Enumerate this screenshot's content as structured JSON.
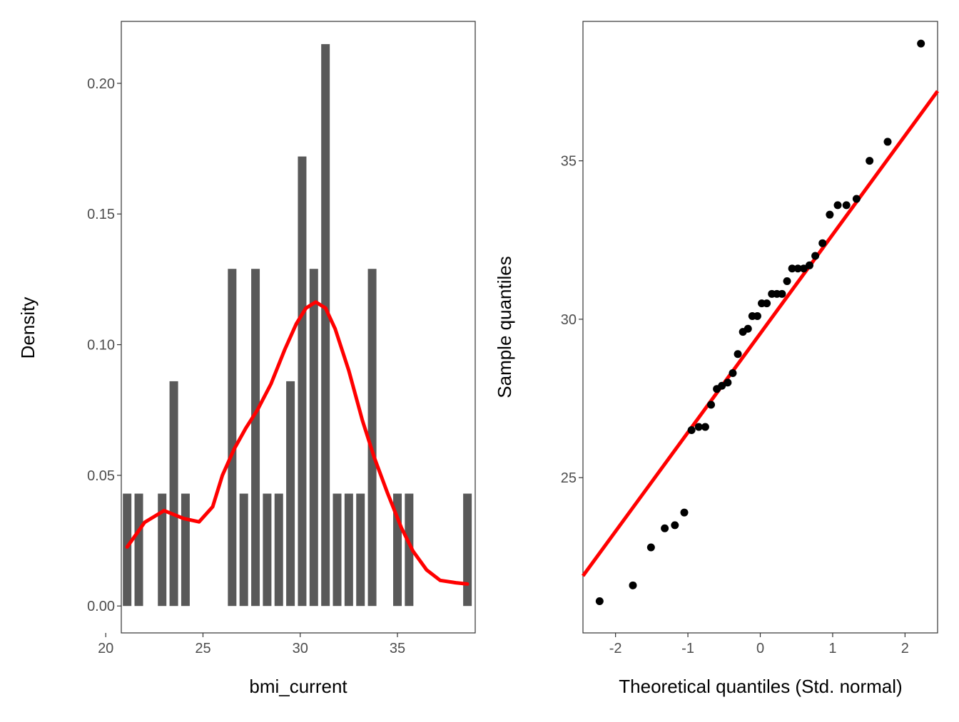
{
  "colors": {
    "bar": "#595959",
    "density_line": "#ff0000",
    "qq_line": "#ff0000",
    "points": "#000000",
    "panel_border": "#333333",
    "tick_text": "#4d4d4d"
  },
  "chart_data": [
    {
      "type": "bar",
      "subtype": "histogram_with_density",
      "title": "",
      "xlabel": "bmi_current",
      "ylabel": "Density",
      "xlim": [
        20.8,
        39.0
      ],
      "ylim": [
        -0.0103,
        0.2237
      ],
      "xticks": [
        20,
        25,
        30,
        35
      ],
      "xtick_labels": [
        "20",
        "25",
        "30",
        "35"
      ],
      "yticks": [
        0.0,
        0.05,
        0.1,
        0.15,
        0.2
      ],
      "ytick_labels": [
        "0.00",
        "0.05",
        "0.10",
        "0.15",
        "0.20"
      ],
      "grid": false,
      "bins": [
        {
          "x": 21.1,
          "density": 0.043
        },
        {
          "x": 21.7,
          "density": 0.043
        },
        {
          "x": 22.9,
          "density": 0.043
        },
        {
          "x": 23.5,
          "density": 0.086
        },
        {
          "x": 24.1,
          "density": 0.043
        },
        {
          "x": 26.5,
          "density": 0.129
        },
        {
          "x": 27.1,
          "density": 0.043
        },
        {
          "x": 27.7,
          "density": 0.129
        },
        {
          "x": 28.3,
          "density": 0.043
        },
        {
          "x": 28.9,
          "density": 0.043
        },
        {
          "x": 29.5,
          "density": 0.086
        },
        {
          "x": 30.1,
          "density": 0.172
        },
        {
          "x": 30.7,
          "density": 0.129
        },
        {
          "x": 31.3,
          "density": 0.215
        },
        {
          "x": 31.9,
          "density": 0.043
        },
        {
          "x": 32.5,
          "density": 0.043
        },
        {
          "x": 33.1,
          "density": 0.043
        },
        {
          "x": 33.7,
          "density": 0.129
        },
        {
          "x": 35.0,
          "density": 0.043
        },
        {
          "x": 35.6,
          "density": 0.043
        },
        {
          "x": 38.6,
          "density": 0.043
        }
      ],
      "density_curve": {
        "x": [
          21.1,
          22.0,
          23.0,
          24.0,
          24.8,
          25.5,
          26.0,
          26.6,
          27.2,
          27.8,
          28.5,
          29.2,
          29.8,
          30.3,
          30.8,
          31.3,
          31.8,
          32.5,
          33.2,
          33.8,
          34.5,
          35.2,
          35.8,
          36.5,
          37.2,
          38.0,
          38.6
        ],
        "y": [
          0.0226,
          0.032,
          0.0365,
          0.0335,
          0.0322,
          0.038,
          0.05,
          0.06,
          0.068,
          0.075,
          0.085,
          0.098,
          0.108,
          0.114,
          0.1163,
          0.114,
          0.106,
          0.09,
          0.071,
          0.057,
          0.043,
          0.03,
          0.021,
          0.0138,
          0.0098,
          0.0089,
          0.0084
        ]
      }
    },
    {
      "type": "scatter",
      "subtype": "qq_plot",
      "title": "",
      "xlabel": "Theoretical quantiles (Std. normal)",
      "ylabel": "Sample quantiles",
      "xlim": [
        -2.45,
        2.45
      ],
      "ylim": [
        20.1,
        39.4
      ],
      "xticks": [
        -2,
        -1,
        0,
        1,
        2
      ],
      "xtick_labels": [
        "-2",
        "-1",
        "0",
        "1",
        "2"
      ],
      "yticks": [
        25,
        30,
        35
      ],
      "ytick_labels": [
        "25",
        "30",
        "35"
      ],
      "grid": false,
      "reference_line": {
        "x": [
          -2.45,
          2.45
        ],
        "y": [
          21.9,
          37.2
        ]
      },
      "points": [
        {
          "x": -2.22,
          "y": 21.1
        },
        {
          "x": -1.76,
          "y": 21.6
        },
        {
          "x": -1.51,
          "y": 22.8
        },
        {
          "x": -1.32,
          "y": 23.4
        },
        {
          "x": -1.18,
          "y": 23.5
        },
        {
          "x": -1.05,
          "y": 23.9
        },
        {
          "x": -0.95,
          "y": 26.5
        },
        {
          "x": -0.85,
          "y": 26.6
        },
        {
          "x": -0.76,
          "y": 26.6
        },
        {
          "x": -0.68,
          "y": 27.3
        },
        {
          "x": -0.6,
          "y": 27.8
        },
        {
          "x": -0.53,
          "y": 27.9
        },
        {
          "x": -0.45,
          "y": 28.0
        },
        {
          "x": -0.38,
          "y": 28.3
        },
        {
          "x": -0.31,
          "y": 28.9
        },
        {
          "x": -0.24,
          "y": 29.6
        },
        {
          "x": -0.17,
          "y": 29.7
        },
        {
          "x": -0.11,
          "y": 30.1
        },
        {
          "x": -0.04,
          "y": 30.1
        },
        {
          "x": 0.02,
          "y": 30.5
        },
        {
          "x": 0.09,
          "y": 30.5
        },
        {
          "x": 0.16,
          "y": 30.8
        },
        {
          "x": 0.23,
          "y": 30.8
        },
        {
          "x": 0.3,
          "y": 30.8
        },
        {
          "x": 0.37,
          "y": 31.2
        },
        {
          "x": 0.44,
          "y": 31.6
        },
        {
          "x": 0.52,
          "y": 31.6
        },
        {
          "x": 0.6,
          "y": 31.6
        },
        {
          "x": 0.68,
          "y": 31.7
        },
        {
          "x": 0.76,
          "y": 32.0
        },
        {
          "x": 0.86,
          "y": 32.4
        },
        {
          "x": 0.96,
          "y": 33.3
        },
        {
          "x": 1.07,
          "y": 33.6
        },
        {
          "x": 1.19,
          "y": 33.6
        },
        {
          "x": 1.33,
          "y": 33.8
        },
        {
          "x": 1.51,
          "y": 35.0
        },
        {
          "x": 1.76,
          "y": 35.6
        },
        {
          "x": 2.22,
          "y": 38.7
        }
      ]
    }
  ]
}
